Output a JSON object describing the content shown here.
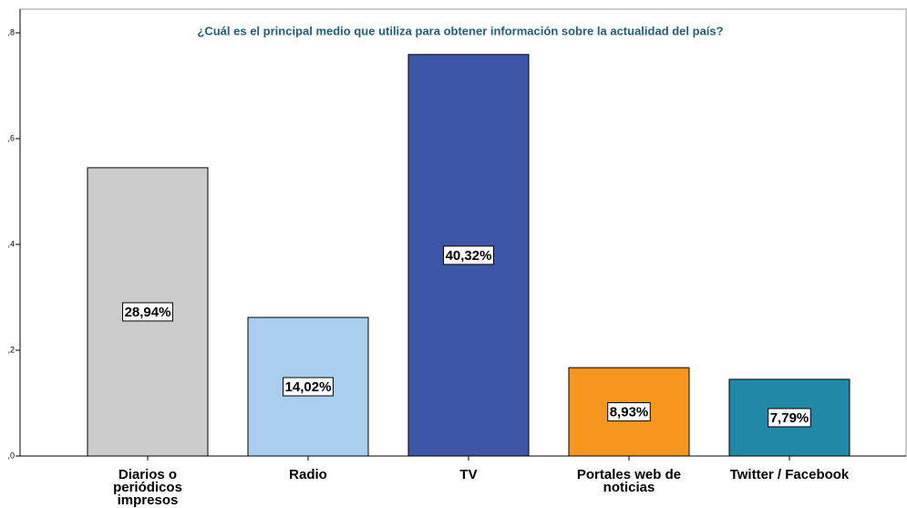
{
  "chart_data": {
    "type": "bar",
    "title": "¿Cuál es el principal medio que utiliza para obtener información sobre la actualidad del país?",
    "categories": [
      "Diarios o periódicos impresos",
      "Radio",
      "TV",
      "Portales web de noticias",
      "Twitter / Facebook"
    ],
    "values": [
      0.545,
      0.262,
      0.759,
      0.167,
      0.145
    ],
    "annotations": [
      "28,94%",
      "14,02%",
      "40,32%",
      "8,93%",
      "7,79%"
    ],
    "colors": [
      "#cccccc",
      "#aacfee",
      "#3d56a8",
      "#f7961e",
      "#2288a8"
    ],
    "ylim": [
      0,
      0.8
    ],
    "yticks": [
      {
        "value": 0,
        "label": ",0"
      },
      {
        "value": 0.2,
        "label": ",2"
      },
      {
        "value": 0.4,
        "label": ",4"
      },
      {
        "value": 0.6,
        "label": ",6"
      },
      {
        "value": 0.8,
        "label": ",8"
      }
    ]
  }
}
